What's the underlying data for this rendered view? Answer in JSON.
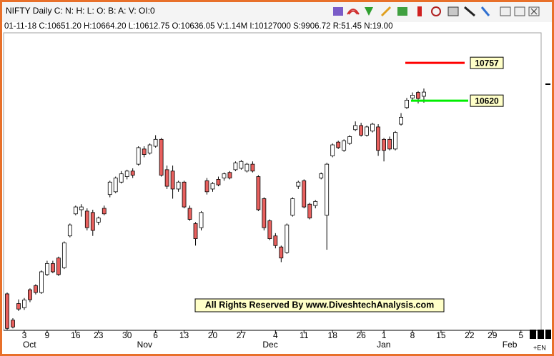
{
  "chart_data": {
    "type": "candlestick",
    "title": "NIFTY Daily C: N: H: L: O: B: A: V: OI:0",
    "subtitle": "01-11-18  C:10651.20 H:10664.20 L:10612.75 O:10636.05 V:1.14M I:10127000 S:9906.72 R:51.45 N:19.00",
    "annotation": "All Rights Reserved By www.DiveshtechAnalysis.com",
    "corner_label": "+EN",
    "ylim": [
      9788,
      10866
    ],
    "up_color": "#ffffff",
    "down_color": "#e8605e",
    "categories": [
      null,
      null,
      null,
      "3",
      null,
      null,
      null,
      "9",
      null,
      null,
      null,
      null,
      "16",
      null,
      null,
      null,
      "23",
      null,
      null,
      null,
      null,
      "30",
      null,
      null,
      null,
      null,
      "6",
      null,
      null,
      null,
      null,
      "13",
      null,
      null,
      null,
      null,
      "20",
      null,
      null,
      null,
      null,
      "27",
      null,
      null,
      null,
      null,
      null,
      "4",
      null,
      null,
      null,
      null,
      "11",
      null,
      null,
      null,
      null,
      "18",
      null,
      null,
      null,
      null,
      "26",
      null,
      null,
      null,
      "1",
      null,
      null,
      null,
      null,
      "8",
      null,
      null,
      null,
      null,
      "15",
      null,
      null,
      null,
      null,
      "22",
      null,
      null,
      null,
      "29",
      null,
      null,
      null,
      null,
      "5",
      null,
      null,
      null,
      null
    ],
    "months": [
      null,
      null,
      null,
      "Oct",
      null,
      null,
      null,
      null,
      null,
      null,
      null,
      null,
      null,
      null,
      null,
      null,
      null,
      null,
      null,
      null,
      null,
      null,
      null,
      "Nov",
      null,
      null,
      null,
      null,
      null,
      null,
      null,
      null,
      null,
      null,
      null,
      null,
      null,
      null,
      null,
      null,
      null,
      null,
      null,
      null,
      null,
      "Dec",
      null,
      null,
      null,
      null,
      null,
      null,
      null,
      null,
      null,
      null,
      null,
      null,
      null,
      null,
      null,
      null,
      null,
      null,
      null,
      "Jan",
      null,
      null,
      null,
      null,
      null,
      null,
      null,
      null,
      null,
      null,
      null,
      null,
      null,
      null,
      null,
      null,
      null,
      null,
      null,
      null,
      null,
      "Feb",
      null,
      null,
      null,
      null,
      null,
      null
    ],
    "open": [
      9920,
      9825,
      9885,
      9870,
      9935,
      9950,
      9925,
      9990,
      10030,
      10050,
      10015,
      10130,
      10210,
      10225,
      10220,
      10215,
      10180,
      10230,
      10280,
      10290,
      10325,
      10345,
      10365,
      10390,
      10445,
      10430,
      10455,
      10480,
      10370,
      10365,
      10300,
      10325,
      10230,
      10175,
      10160,
      10330,
      10300,
      10335,
      10340,
      10360,
      10370,
      10375,
      10365,
      10390,
      10345,
      10265,
      10185,
      10130,
      10090,
      10070,
      10205,
      10310,
      10330,
      10245,
      10240,
      10340,
      10205,
      10420,
      10470,
      10440,
      10465,
      10515,
      10530,
      10495,
      10510,
      10525,
      10480,
      10480,
      10445,
      10535,
      10595,
      10630,
      10650,
      10636.05,
      null,
      null,
      null,
      null,
      null,
      null,
      null,
      null,
      null,
      null,
      null,
      null,
      null,
      null,
      null,
      null,
      null,
      null,
      null,
      null
    ],
    "high": [
      9925,
      9832,
      9900,
      9905,
      9940,
      9955,
      10005,
      10040,
      10040,
      10055,
      10110,
      10175,
      10240,
      10245,
      10230,
      10225,
      10200,
      10240,
      10330,
      10345,
      10365,
      10370,
      10375,
      10455,
      10455,
      10465,
      10495,
      10485,
      10385,
      10385,
      10330,
      10330,
      10240,
      10180,
      10220,
      10340,
      10325,
      10345,
      10360,
      10365,
      10400,
      10405,
      10395,
      10400,
      10350,
      10270,
      10190,
      10140,
      10095,
      10175,
      10270,
      10330,
      10335,
      10250,
      10260,
      10360,
      10395,
      10465,
      10475,
      10480,
      10495,
      10545,
      10540,
      10530,
      10540,
      10535,
      10485,
      10490,
      10510,
      10575,
      10630,
      10650,
      10655,
      10664.2,
      null,
      null,
      null,
      null,
      null,
      null,
      null,
      null,
      null,
      null,
      null,
      null,
      null,
      null,
      null,
      null,
      null,
      null,
      null,
      null
    ],
    "low": [
      9790,
      9795,
      9858,
      9862,
      9890,
      9918,
      9920,
      9985,
      9995,
      9985,
      10010,
      10125,
      10205,
      10200,
      10150,
      10130,
      10170,
      10205,
      10270,
      10285,
      10320,
      10335,
      10340,
      10385,
      10415,
      10425,
      10450,
      10345,
      10300,
      10265,
      10290,
      10230,
      10185,
      10095,
      10150,
      10280,
      10290,
      10310,
      10330,
      10335,
      10365,
      10370,
      10360,
      10360,
      10220,
      10150,
      10115,
      10085,
      10035,
      10065,
      10200,
      10300,
      10230,
      10190,
      10230,
      10335,
      10080,
      10415,
      10445,
      10435,
      10460,
      10510,
      10490,
      10490,
      10505,
      10420,
      10400,
      10440,
      10440,
      10530,
      10590,
      10620,
      10610,
      10612.75,
      null,
      null,
      null,
      null,
      null,
      null,
      null,
      null,
      null,
      null,
      null,
      null,
      null,
      null,
      null,
      null,
      null,
      null,
      null,
      null
    ],
    "close": [
      9795,
      9800,
      9865,
      9898,
      9899,
      9925,
      10000,
      10030,
      10000,
      9990,
      10105,
      10170,
      10235,
      10235,
      10160,
      10150,
      10195,
      10210,
      10325,
      10340,
      10355,
      10365,
      10350,
      10450,
      10425,
      10460,
      10480,
      10350,
      10310,
      10300,
      10325,
      10235,
      10190,
      10120,
      10215,
      10290,
      10320,
      10315,
      10355,
      10340,
      10395,
      10400,
      10390,
      10365,
      10225,
      10160,
      10120,
      10095,
      10050,
      10170,
      10265,
      10325,
      10235,
      10195,
      10255,
      10355,
      10390,
      10460,
      10450,
      10475,
      10490,
      10530,
      10495,
      10525,
      10535,
      10440,
      10440,
      10445,
      10505,
      10560,
      10622,
      10640,
      10628,
      10651.2,
      null,
      null,
      null,
      null,
      null,
      null,
      null,
      null,
      null,
      null,
      null,
      null,
      null,
      null,
      null,
      null,
      null,
      null,
      null,
      null
    ],
    "levels": [
      {
        "value": 10757,
        "color": "#ff0000"
      },
      {
        "value": 10620,
        "color": "#00ee00"
      }
    ]
  }
}
